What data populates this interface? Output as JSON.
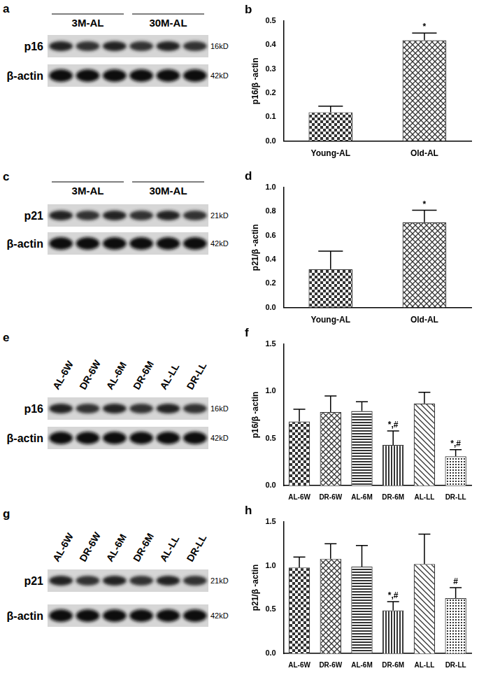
{
  "blots": [
    {
      "panel": "a",
      "groups": [
        {
          "label": "3M-AL",
          "lanes": 3
        },
        {
          "label": "30M-AL",
          "lanes": 3
        }
      ],
      "rows": [
        {
          "protein": "p16",
          "size": "16kD"
        },
        {
          "protein": "β-actin",
          "size": "42kD"
        }
      ]
    },
    {
      "panel": "c",
      "groups": [
        {
          "label": "3M-AL",
          "lanes": 3
        },
        {
          "label": "30M-AL",
          "lanes": 3
        }
      ],
      "rows": [
        {
          "protein": "p21",
          "size": "21kD"
        },
        {
          "protein": "β-actin",
          "size": "42kD"
        }
      ]
    },
    {
      "panel": "e",
      "lanes": [
        "AL-6W",
        "DR-6W",
        "AL-6M",
        "DR-6M",
        "AL-LL",
        "DR-LL"
      ],
      "rows": [
        {
          "protein": "p16",
          "size": "16kD"
        },
        {
          "protein": "β-actin",
          "size": "42kD"
        }
      ]
    },
    {
      "panel": "g",
      "lanes": [
        "AL-6W",
        "DR-6W",
        "AL-6M",
        "DR-6M",
        "AL-LL",
        "DR-LL"
      ],
      "rows": [
        {
          "protein": "p21",
          "size": "21kD"
        },
        {
          "protein": "β-actin",
          "size": "42kD"
        }
      ]
    }
  ],
  "chart_data": [
    {
      "panel": "b",
      "type": "bar",
      "categories": [
        "Young-AL",
        "Old-AL"
      ],
      "values": [
        0.12,
        0.42
      ],
      "errors": [
        0.025,
        0.03
      ],
      "annotations": [
        null,
        "*"
      ],
      "colors": [
        "#333333",
        "#333333"
      ],
      "y_label": "p16/β -actin",
      "ylim": [
        0,
        0.5
      ],
      "yticks": [
        {
          "value": 0,
          "label": "0.0"
        },
        0.1,
        0.2,
        0.3,
        0.4,
        0.5
      ],
      "grid": false
    },
    {
      "panel": "d",
      "type": "bar",
      "categories": [
        "Young-AL",
        "Old-AL"
      ],
      "values": [
        0.32,
        0.71
      ],
      "errors": [
        0.15,
        0.1
      ],
      "annotations": [
        null,
        "*"
      ],
      "colors": [
        "#333333",
        "#333333"
      ],
      "y_label": "p21/β -actin",
      "ylim": [
        0,
        1
      ],
      "yticks": [
        {
          "value": 0,
          "label": "0.0"
        },
        0.2,
        0.4,
        0.6,
        0.8,
        {
          "value": 1,
          "label": "1.0"
        }
      ],
      "grid": false
    },
    {
      "panel": "f",
      "type": "bar",
      "categories": [
        "AL-6W",
        "DR-6W",
        "AL-6M",
        "DR-6M",
        "AL-LL",
        "DR-LL"
      ],
      "values": [
        0.68,
        0.78,
        0.79,
        0.43,
        0.87,
        0.31
      ],
      "errors": [
        0.13,
        0.17,
        0.1,
        0.15,
        0.12,
        0.07
      ],
      "annotations": [
        null,
        null,
        null,
        "*,#",
        null,
        "*,#"
      ],
      "colors": [
        "#333333",
        "#333333",
        "#333333",
        "#333333",
        "#333333",
        "#333333"
      ],
      "y_label": "p16/β -actin",
      "ylim": [
        0,
        1.5
      ],
      "yticks": [
        {
          "value": 0,
          "label": "0.0"
        },
        0.5,
        {
          "value": 1,
          "label": "1.0"
        },
        1.5
      ],
      "grid": false
    },
    {
      "panel": "h",
      "type": "bar",
      "categories": [
        "AL-6W",
        "DR-6W",
        "AL-6M",
        "DR-6M",
        "AL-LL",
        "DR-LL"
      ],
      "values": [
        0.98,
        1.08,
        0.99,
        0.49,
        1.02,
        0.63
      ],
      "errors": [
        0.12,
        0.17,
        0.24,
        0.1,
        0.34,
        0.12
      ],
      "annotations": [
        null,
        null,
        null,
        "*,#",
        null,
        "#"
      ],
      "colors": [
        "#333333",
        "#333333",
        "#333333",
        "#333333",
        "#333333",
        "#333333"
      ],
      "y_label": "p21/β -actin",
      "ylim": [
        0,
        1.5
      ],
      "yticks": [
        {
          "value": 0,
          "label": "0.0"
        },
        0.5,
        {
          "value": 1,
          "label": "1.0"
        },
        1.5
      ],
      "grid": false
    }
  ]
}
